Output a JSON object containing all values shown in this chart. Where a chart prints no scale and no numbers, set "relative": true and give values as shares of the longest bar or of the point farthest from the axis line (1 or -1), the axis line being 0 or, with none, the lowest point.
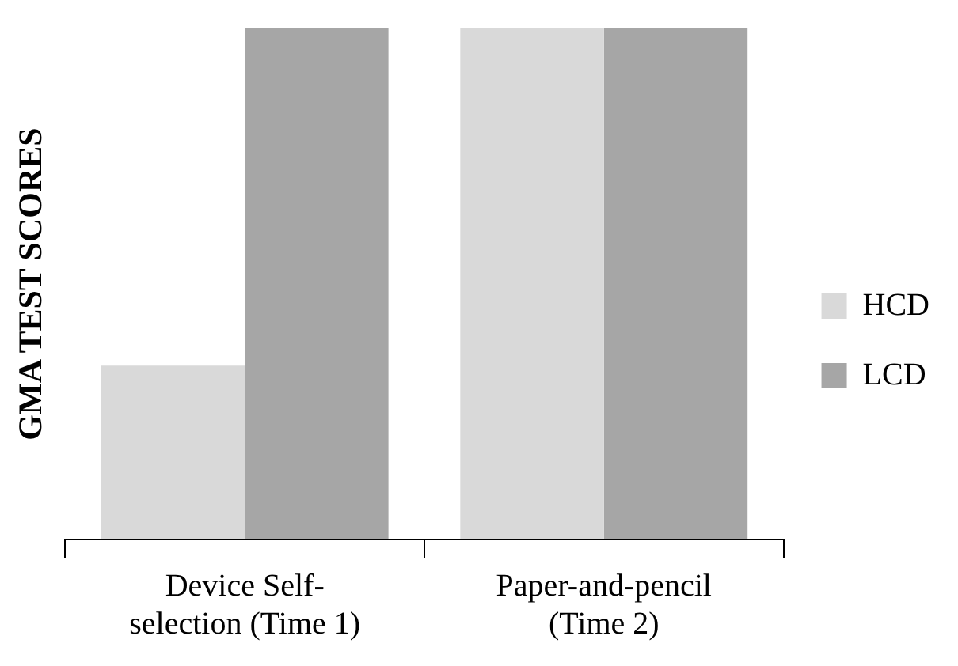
{
  "chart_data": {
    "type": "bar",
    "ylabel": "GMA TEST SCORES",
    "categories": [
      "Device Self-selection (Time 1)",
      "Paper-and-pencil (Time 2)"
    ],
    "relative": true,
    "legend": "right",
    "grid": false,
    "series": [
      {
        "name": "HCD",
        "color": "#d9d9d9",
        "values": [
          0.34,
          1
        ]
      },
      {
        "name": "LCD",
        "color": "#a6a6a6",
        "values": [
          1,
          1
        ]
      }
    ]
  }
}
